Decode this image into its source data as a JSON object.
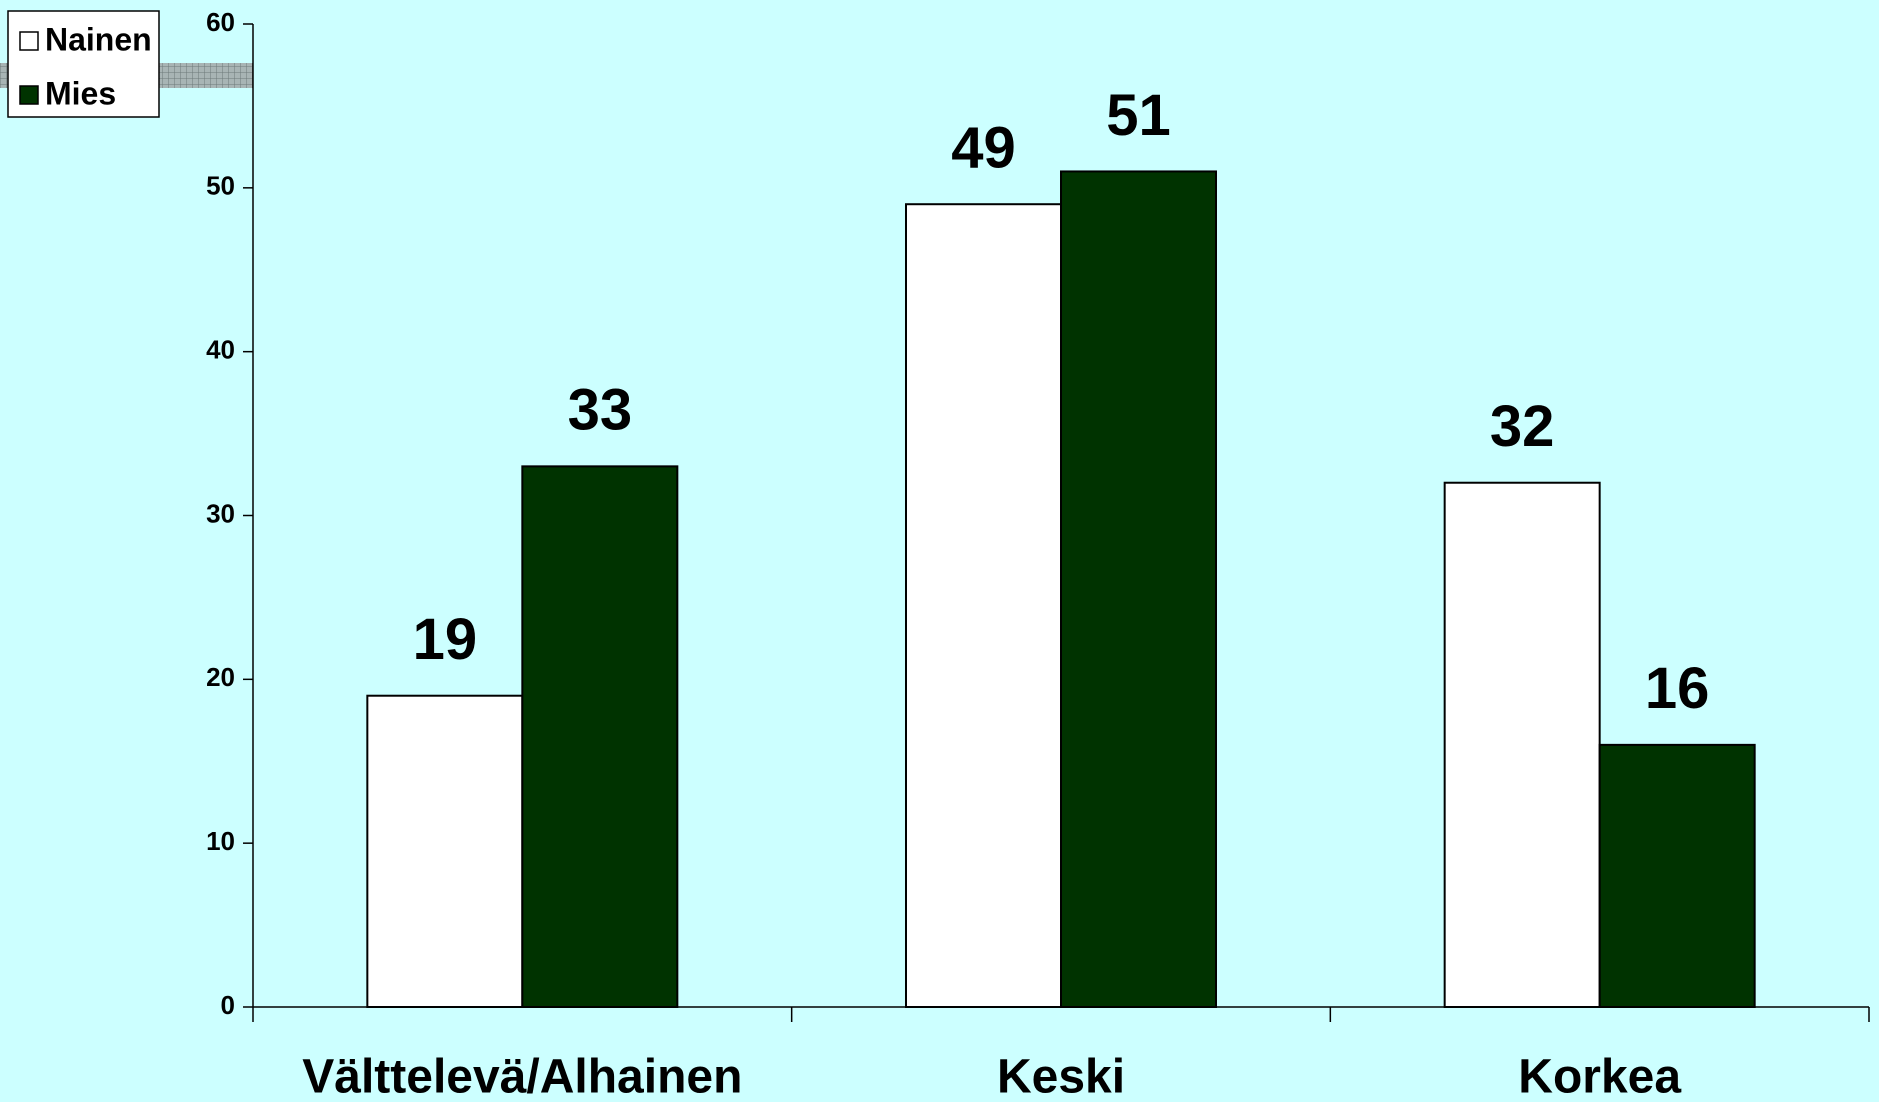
{
  "chart_data": {
    "type": "bar",
    "categories": [
      "Välttelevä/Alhainen",
      "Keski",
      "Korkea"
    ],
    "series": [
      {
        "name": "Nainen",
        "color": "#ffffff",
        "values": [
          19,
          49,
          32
        ]
      },
      {
        "name": "Mies",
        "color": "#003300",
        "values": [
          33,
          51,
          16
        ]
      }
    ],
    "ylim": [
      0,
      60
    ],
    "yticks": [
      0,
      10,
      20,
      30,
      40,
      50,
      60
    ],
    "legend": "top-left",
    "background": "#ccffff"
  }
}
